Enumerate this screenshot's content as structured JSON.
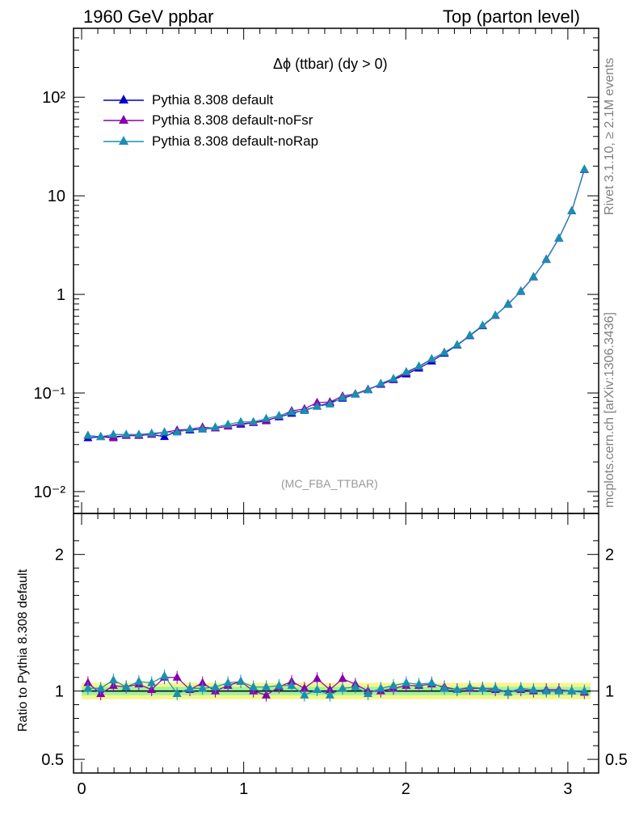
{
  "header": {
    "left": "1960 GeV ppbar",
    "right": "Top (parton level)"
  },
  "plot_title": "Δϕ (ttbar) (dy > 0)",
  "analysis_label": "(MC_FBA_TTBAR)",
  "side_labels": {
    "rivet": "Rivet 3.1.10, ≥ 2.1M events",
    "source": "mcplots.cern.ch [arXiv:1306.3436]"
  },
  "ratio_ylabel": "Ratio to Pythia 8.308 default",
  "legend": [
    {
      "label": "Pythia 8.308 default",
      "color": "#0000cc"
    },
    {
      "label": "Pythia 8.308 default-noFsr",
      "color": "#8800aa"
    },
    {
      "label": "Pythia 8.308 default-noRap",
      "color": "#1a8fb0"
    }
  ],
  "tick_labels": {
    "main_y": [
      "10⁻²",
      "10⁻¹",
      "1",
      "10",
      "10²"
    ],
    "ratio_y": [
      "0.5",
      "1",
      "2"
    ],
    "ratio_y_right": [
      "0.5",
      "1",
      "2"
    ],
    "x": [
      "0",
      "1",
      "2",
      "3"
    ]
  },
  "chart_data": [
    {
      "type": "line",
      "panel": "main",
      "yscale": "log",
      "xlim": [
        -0.05,
        3.19
      ],
      "ylim": [
        0.006,
        500
      ],
      "x": [
        0.039,
        0.118,
        0.196,
        0.275,
        0.353,
        0.432,
        0.511,
        0.589,
        0.668,
        0.746,
        0.825,
        0.903,
        0.982,
        1.06,
        1.139,
        1.218,
        1.296,
        1.375,
        1.453,
        1.532,
        1.61,
        1.689,
        1.767,
        1.846,
        1.924,
        2.003,
        2.081,
        2.16,
        2.238,
        2.317,
        2.395,
        2.474,
        2.553,
        2.631,
        2.71,
        2.788,
        2.867,
        2.945,
        3.024,
        3.102
      ],
      "series": [
        {
          "name": "Pythia 8.308 default",
          "color": "#0000cc",
          "values": [
            0.035,
            0.036,
            0.036,
            0.037,
            0.037,
            0.038,
            0.036,
            0.041,
            0.042,
            0.043,
            0.044,
            0.046,
            0.048,
            0.05,
            0.053,
            0.057,
            0.062,
            0.067,
            0.073,
            0.08,
            0.088,
            0.097,
            0.108,
            0.122,
            0.136,
            0.155,
            0.178,
            0.21,
            0.252,
            0.305,
            0.38,
            0.478,
            0.61,
            0.8,
            1.07,
            1.5,
            2.25,
            3.7,
            7.0,
            18.5
          ]
        },
        {
          "name": "Pythia 8.308 default-noFsr",
          "color": "#8800aa",
          "values": [
            0.037,
            0.036,
            0.035,
            0.037,
            0.037,
            0.038,
            0.04,
            0.042,
            0.043,
            0.045,
            0.044,
            0.046,
            0.049,
            0.05,
            0.052,
            0.058,
            0.066,
            0.069,
            0.08,
            0.081,
            0.093,
            0.098,
            0.109,
            0.123,
            0.138,
            0.16,
            0.185,
            0.22,
            0.258,
            0.308,
            0.383,
            0.482,
            0.612,
            0.79,
            1.08,
            1.5,
            2.27,
            3.72,
            7.02,
            18.4
          ]
        },
        {
          "name": "Pythia 8.308 default-noRap",
          "color": "#1a8fb0",
          "values": [
            0.037,
            0.036,
            0.038,
            0.038,
            0.038,
            0.039,
            0.04,
            0.04,
            0.043,
            0.043,
            0.045,
            0.048,
            0.051,
            0.051,
            0.055,
            0.059,
            0.064,
            0.066,
            0.073,
            0.077,
            0.09,
            0.097,
            0.107,
            0.125,
            0.14,
            0.164,
            0.187,
            0.222,
            0.257,
            0.308,
            0.385,
            0.485,
            0.615,
            0.793,
            1.08,
            1.51,
            2.25,
            3.72,
            7.03,
            18.6
          ]
        }
      ]
    },
    {
      "type": "line",
      "panel": "ratio",
      "xlim": [
        -0.05,
        3.19
      ],
      "ylim": [
        0.4,
        2.3
      ],
      "x": [
        0.039,
        0.118,
        0.196,
        0.275,
        0.353,
        0.432,
        0.511,
        0.589,
        0.668,
        0.746,
        0.825,
        0.903,
        0.982,
        1.06,
        1.139,
        1.218,
        1.296,
        1.375,
        1.453,
        1.532,
        1.61,
        1.689,
        1.767,
        1.846,
        1.924,
        2.003,
        2.081,
        2.16,
        2.238,
        2.317,
        2.395,
        2.474,
        2.553,
        2.631,
        2.71,
        2.788,
        2.867,
        2.945,
        3.024,
        3.102
      ],
      "band_outer": 0.06,
      "band_inner": 0.03,
      "series": [
        {
          "name": "Pythia 8.308 default-noFsr",
          "color": "#8800aa",
          "values": [
            1.06,
            0.98,
            1.04,
            1.03,
            1.05,
            1.01,
            1.1,
            1.1,
            1.01,
            1.06,
            1.0,
            1.04,
            1.07,
            1.0,
            0.97,
            1.03,
            1.07,
            1.02,
            1.09,
            1.01,
            1.09,
            1.05,
            1.0,
            1.0,
            1.02,
            1.04,
            1.04,
            1.05,
            1.03,
            1.01,
            1.02,
            1.02,
            1.01,
            0.99,
            1.01,
            1.0,
            1.01,
            1.01,
            1.0,
            0.99
          ]
        },
        {
          "name": "Pythia 8.308 default-noRap",
          "color": "#1a8fb0",
          "values": [
            1.02,
            1.02,
            1.08,
            1.03,
            1.07,
            1.06,
            1.11,
            0.98,
            1.02,
            1.02,
            1.03,
            1.06,
            1.07,
            1.03,
            1.03,
            1.04,
            1.04,
            0.97,
            1.01,
            0.97,
            1.02,
            1.03,
            0.98,
            1.02,
            1.04,
            1.06,
            1.05,
            1.06,
            1.02,
            1.01,
            1.03,
            1.02,
            1.02,
            0.99,
            1.02,
            1.01,
            1.0,
            1.0,
            1.0,
            1.0
          ]
        }
      ]
    }
  ]
}
